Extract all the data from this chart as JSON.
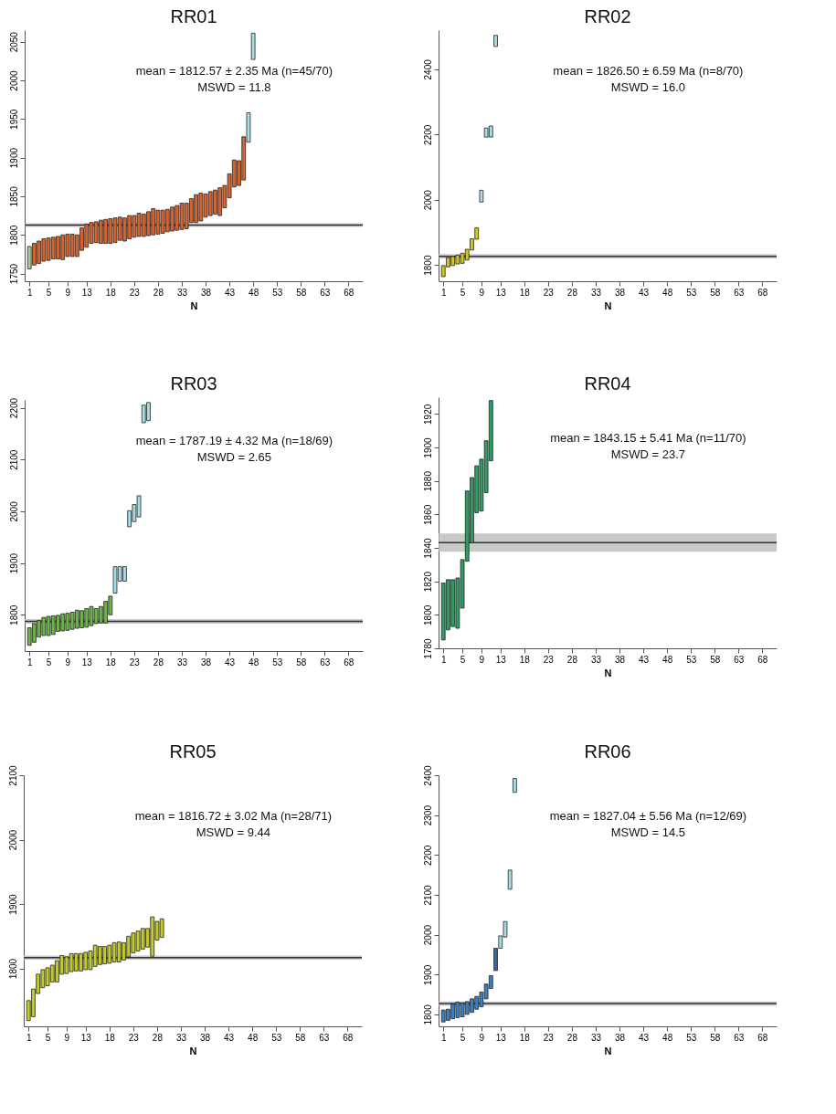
{
  "chart_data": [
    {
      "type": "bar",
      "title": "RR01",
      "xlabel": "N",
      "annotations": [
        "mean = 1812.57 ± 2.35 Ma (n=45/70)",
        "MSWD = 11.8"
      ],
      "x": [
        1,
        2,
        3,
        4,
        5,
        6,
        7,
        8,
        9,
        10,
        11,
        12,
        13,
        14,
        15,
        16,
        17,
        18,
        19,
        20,
        21,
        22,
        23,
        24,
        25,
        26,
        27,
        28,
        29,
        30,
        31,
        32,
        33,
        34,
        35,
        36,
        37,
        38,
        39,
        40,
        41,
        42,
        43,
        44,
        45,
        46,
        47,
        48
      ],
      "base": [
        1756,
        1761,
        1763,
        1766,
        1767,
        1769,
        1769,
        1768,
        1772,
        1772,
        1772,
        1780,
        1784,
        1789,
        1790,
        1789,
        1789,
        1789,
        1790,
        1793,
        1792,
        1795,
        1797,
        1798,
        1798,
        1799,
        1800,
        1801,
        1802,
        1804,
        1805,
        1806,
        1807,
        1808,
        1816,
        1816,
        1818,
        1823,
        1825,
        1827,
        1825,
        1835,
        1848,
        1862,
        1864,
        1871,
        1920,
        2027
      ],
      "values": [
        29,
        28,
        29,
        29,
        29,
        28,
        29,
        32,
        29,
        29,
        28,
        29,
        30,
        27,
        27,
        30,
        31,
        32,
        32,
        30,
        30,
        30,
        28,
        30,
        29,
        31,
        34,
        31,
        30,
        29,
        31,
        32,
        34,
        33,
        31,
        36,
        36,
        30,
        31,
        31,
        36,
        29,
        31,
        35,
        32,
        56,
        38,
        34
      ],
      "colors": [
        "#9fd08f",
        "#d9622b",
        "#d9622b",
        "#d9622b",
        "#d9622b",
        "#d9622b",
        "#d9622b",
        "#d9622b",
        "#d9622b",
        "#d9622b",
        "#d9622b",
        "#d9622b",
        "#d9622b",
        "#d9622b",
        "#d9622b",
        "#d9622b",
        "#d9622b",
        "#d9622b",
        "#d9622b",
        "#d9622b",
        "#d9622b",
        "#d9622b",
        "#d9622b",
        "#d9622b",
        "#d9622b",
        "#d9622b",
        "#d9622b",
        "#d9622b",
        "#d9622b",
        "#d9622b",
        "#d9622b",
        "#d9622b",
        "#d9622b",
        "#d9622b",
        "#d9622b",
        "#d9622b",
        "#d9622b",
        "#d9622b",
        "#d9622b",
        "#d9622b",
        "#d9622b",
        "#d9622b",
        "#d9622b",
        "#d9622b",
        "#d9622b",
        "#d9622b",
        "#a8dde6",
        "#a8dde6"
      ],
      "xlim": [
        0,
        71
      ],
      "xticks": [
        1,
        5,
        9,
        13,
        18,
        23,
        28,
        33,
        38,
        43,
        48,
        53,
        58,
        63,
        68
      ],
      "ylim": [
        1740,
        2065
      ],
      "yticks": [
        1750,
        1800,
        1850,
        1900,
        1950,
        2000,
        2050
      ],
      "ref_lines": [
        {
          "axis": "y",
          "value": 1812.57,
          "color": "#333333"
        }
      ],
      "bands": [
        {
          "axis": "y",
          "from": 1810.22,
          "to": 1814.92,
          "color": "#bbbbbb"
        }
      ],
      "grid": false
    },
    {
      "type": "bar",
      "title": "RR02",
      "xlabel": "N",
      "annotations": [
        "mean = 1826.50 ± 6.59 Ma (n=8/70)",
        "MSWD = 16.0"
      ],
      "x": [
        1,
        2,
        3,
        4,
        5,
        6,
        7,
        8,
        9,
        10,
        11,
        12
      ],
      "base": [
        1764,
        1794,
        1798,
        1803,
        1805,
        1815,
        1846,
        1879,
        1993,
        2192,
        2192,
        2470
      ],
      "values": [
        34,
        28,
        28,
        27,
        31,
        33,
        34,
        35,
        36,
        28,
        34,
        34
      ],
      "colors": [
        "#d2c81e",
        "#d2c81e",
        "#d2c81e",
        "#d2c81e",
        "#d2c81e",
        "#d2c81e",
        "#d2c81e",
        "#d2c81e",
        "#a8dde6",
        "#a8dde6",
        "#a8dde6",
        "#a8dde6"
      ],
      "xlim": [
        0,
        71
      ],
      "xticks": [
        1,
        5,
        9,
        13,
        18,
        23,
        28,
        33,
        38,
        43,
        48,
        53,
        58,
        63,
        68
      ],
      "ylim": [
        1750,
        2520
      ],
      "yticks": [
        1800,
        2000,
        2200,
        2400
      ],
      "ref_lines": [
        {
          "axis": "y",
          "value": 1826.5,
          "color": "#333333"
        }
      ],
      "bands": [
        {
          "axis": "y",
          "from": 1819.91,
          "to": 1833.09,
          "color": "#bbbbbb"
        }
      ],
      "grid": false
    },
    {
      "type": "bar",
      "title": "RR03",
      "annotations": [
        "mean = 1787.19 ± 4.32 Ma (n=18/69)",
        "MSWD = 2.65"
      ],
      "x": [
        1,
        2,
        3,
        4,
        5,
        6,
        7,
        8,
        9,
        10,
        11,
        12,
        13,
        14,
        15,
        16,
        17,
        18,
        19,
        20,
        21,
        22,
        23,
        24,
        25,
        26
      ],
      "base": [
        1741,
        1747,
        1757,
        1760,
        1760,
        1762,
        1768,
        1769,
        1770,
        1772,
        1774,
        1775,
        1776,
        1779,
        1783,
        1784,
        1784,
        1800,
        1842,
        1865,
        1865,
        1970,
        1980,
        1989,
        2171,
        2175
      ],
      "values": [
        34,
        36,
        32,
        35,
        37,
        36,
        31,
        33,
        33,
        33,
        35,
        33,
        36,
        37,
        29,
        32,
        42,
        36,
        51,
        28,
        28,
        31,
        33,
        41,
        34,
        35
      ],
      "colors": [
        "#6ab545",
        "#6ab545",
        "#6ab545",
        "#6ab545",
        "#6ab545",
        "#6ab545",
        "#6ab545",
        "#6ab545",
        "#6ab545",
        "#6ab545",
        "#6ab545",
        "#6ab545",
        "#6ab545",
        "#6ab545",
        "#6ab545",
        "#6ab545",
        "#6ab545",
        "#6ab545",
        "#a8dde6",
        "#a8dde6",
        "#a8dde6",
        "#a8dde6",
        "#a8dde6",
        "#a8dde6",
        "#a8dde6",
        "#a8dde6"
      ],
      "xlim": [
        0,
        71
      ],
      "xticks": [
        1,
        5,
        9,
        13,
        18,
        23,
        28,
        33,
        38,
        43,
        48,
        53,
        58,
        63,
        68
      ],
      "ylim": [
        1730,
        2215
      ],
      "yticks": [
        1800,
        1900,
        2000,
        2100,
        2200
      ],
      "ref_lines": [
        {
          "axis": "y",
          "value": 1787.19,
          "color": "#333333"
        }
      ],
      "bands": [
        {
          "axis": "y",
          "from": 1782.87,
          "to": 1791.51,
          "color": "#bbbbbb"
        }
      ],
      "grid": false
    },
    {
      "type": "bar",
      "title": "RR04",
      "xlabel": "N",
      "annotations": [
        "mean = 1843.15 ± 5.41 Ma (n=11/70)",
        "MSWD = 23.7"
      ],
      "x": [
        1,
        2,
        3,
        4,
        5,
        6,
        7,
        8,
        9,
        10,
        11
      ],
      "base": [
        1785,
        1791,
        1793,
        1792,
        1804,
        1832,
        1843,
        1861,
        1862,
        1873,
        1892
      ],
      "values": [
        34,
        30,
        28,
        30,
        29,
        42,
        39,
        28,
        31,
        31,
        36
      ],
      "colors": [
        "#2e9e64",
        "#2e9e64",
        "#2e9e64",
        "#2e9e64",
        "#2e9e64",
        "#2e9e64",
        "#2e9e64",
        "#2e9e64",
        "#2e9e64",
        "#2e9e64",
        "#2e9e64"
      ],
      "xlim": [
        0,
        71
      ],
      "xticks": [
        1,
        5,
        9,
        13,
        18,
        23,
        28,
        33,
        38,
        43,
        48,
        53,
        58,
        63,
        68
      ],
      "ylim": [
        1780,
        1930
      ],
      "yticks": [
        1780,
        1800,
        1820,
        1840,
        1860,
        1880,
        1900,
        1920
      ],
      "ref_lines": [
        {
          "axis": "y",
          "value": 1843.15,
          "color": "#333333"
        }
      ],
      "bands": [
        {
          "axis": "y",
          "from": 1837.74,
          "to": 1848.56,
          "color": "#bbbbbb"
        }
      ],
      "grid": false
    },
    {
      "type": "bar",
      "title": "RR05",
      "xlabel": "N",
      "annotations": [
        "mean = 1816.72 ± 3.02 Ma (n=28/71)",
        "MSWD = 9.44"
      ],
      "x": [
        1,
        2,
        3,
        4,
        5,
        6,
        7,
        8,
        9,
        10,
        11,
        12,
        13,
        14,
        15,
        16,
        17,
        18,
        19,
        20,
        21,
        22,
        23,
        24,
        25,
        26,
        27,
        28,
        29
      ],
      "base": [
        1719,
        1725,
        1761,
        1770,
        1773,
        1779,
        1779,
        1791,
        1792,
        1795,
        1796,
        1796,
        1798,
        1798,
        1803,
        1806,
        1807,
        1808,
        1810,
        1810,
        1813,
        1818,
        1824,
        1827,
        1830,
        1833,
        1819,
        1844,
        1848
      ],
      "values": [
        31,
        43,
        30,
        28,
        28,
        26,
        33,
        29,
        26,
        28,
        27,
        27,
        27,
        29,
        33,
        28,
        27,
        28,
        30,
        31,
        27,
        32,
        31,
        31,
        32,
        29,
        61,
        29,
        29
      ],
      "colors": [
        "#c4cc2a",
        "#c4cc2a",
        "#c4cc2a",
        "#c4cc2a",
        "#c4cc2a",
        "#c4cc2a",
        "#c4cc2a",
        "#c4cc2a",
        "#c4cc2a",
        "#c4cc2a",
        "#c4cc2a",
        "#c4cc2a",
        "#c4cc2a",
        "#c4cc2a",
        "#c4cc2a",
        "#c4cc2a",
        "#c4cc2a",
        "#c4cc2a",
        "#c4cc2a",
        "#c4cc2a",
        "#c4cc2a",
        "#c4cc2a",
        "#c4cc2a",
        "#c4cc2a",
        "#c4cc2a",
        "#c4cc2a",
        "#c4cc2a",
        "#c4cc2a",
        "#c4cc2a"
      ],
      "xlim": [
        0,
        71
      ],
      "xticks": [
        1,
        5,
        9,
        13,
        18,
        23,
        28,
        33,
        38,
        43,
        48,
        53,
        58,
        63,
        68
      ],
      "ylim": [
        1710,
        2100
      ],
      "yticks": [
        1800,
        1900,
        2000,
        2100
      ],
      "ref_lines": [
        {
          "axis": "y",
          "value": 1816.72,
          "color": "#333333"
        }
      ],
      "bands": [
        {
          "axis": "y",
          "from": 1813.7,
          "to": 1819.74,
          "color": "#bbbbbb"
        }
      ],
      "grid": false
    },
    {
      "type": "bar",
      "title": "RR06",
      "xlabel": "N",
      "annotations": [
        "mean = 1827.04 ± 5.56 Ma (n=12/69)",
        "MSWD = 14.5"
      ],
      "x": [
        1,
        2,
        3,
        4,
        5,
        6,
        7,
        8,
        9,
        10,
        11,
        12,
        13,
        14,
        15,
        16
      ],
      "base": [
        1781,
        1785,
        1789,
        1792,
        1794,
        1800,
        1805,
        1813,
        1819,
        1839,
        1865,
        1910,
        1966,
        1994,
        2114,
        2357
      ],
      "values": [
        30,
        28,
        37,
        39,
        35,
        32,
        34,
        32,
        37,
        37,
        32,
        56,
        31,
        39,
        48,
        35
      ],
      "colors": [
        "#3b7fc4",
        "#3b7fc4",
        "#3b7fc4",
        "#3b7fc4",
        "#3b7fc4",
        "#3b7fc4",
        "#3b7fc4",
        "#3b7fc4",
        "#3b7fc4",
        "#3b7fc4",
        "#3b7fc4",
        "#2f6aa8",
        "#a8dde6",
        "#a8dde6",
        "#a8dde6",
        "#a8dde6"
      ],
      "xlim": [
        0,
        71
      ],
      "xticks": [
        1,
        5,
        9,
        13,
        18,
        23,
        28,
        33,
        38,
        43,
        48,
        53,
        58,
        63,
        68
      ],
      "ylim": [
        1770,
        2400
      ],
      "yticks": [
        1800,
        1900,
        2000,
        2100,
        2200,
        2300,
        2400
      ],
      "ref_lines": [
        {
          "axis": "y",
          "value": 1827.04,
          "color": "#333333"
        }
      ],
      "bands": [
        {
          "axis": "y",
          "from": 1821.48,
          "to": 1832.6,
          "color": "#bbbbbb"
        }
      ],
      "grid": false
    }
  ]
}
